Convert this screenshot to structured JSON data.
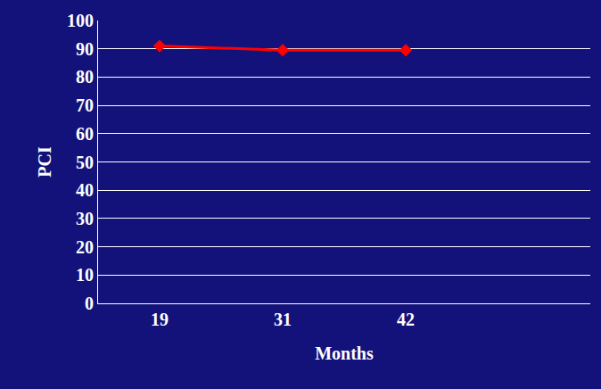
{
  "chart_data": {
    "type": "line",
    "xlabel": "Months",
    "ylabel": "PCI",
    "categories": [
      "19",
      "31",
      "42",
      null
    ],
    "values": [
      91,
      89.5,
      89.5,
      null
    ],
    "color": "#ff0000",
    "marker": "diamond",
    "line_style": "solid",
    "ylim": [
      0,
      100
    ],
    "yticks": [
      0,
      10,
      20,
      30,
      40,
      50,
      60,
      70,
      80,
      90,
      100
    ],
    "grid": true
  }
}
